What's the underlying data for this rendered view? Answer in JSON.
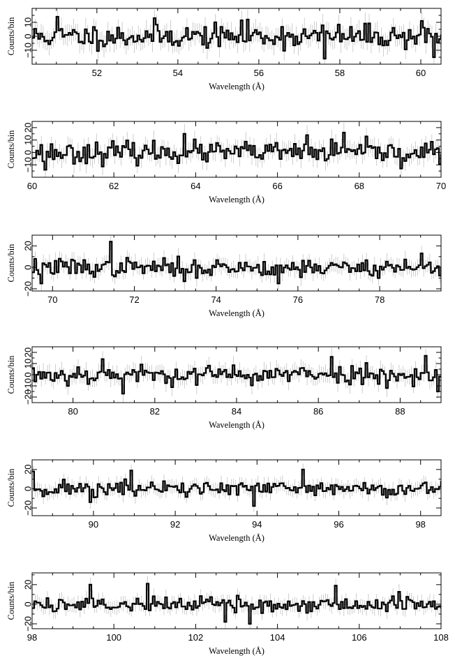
{
  "chart_data": [
    {
      "type": "line",
      "style": "step-histogram",
      "xlabel": "Wavelength (Å)",
      "ylabel": "Counts/bin",
      "xlim": [
        50.4,
        60.5
      ],
      "ylim": [
        -20,
        20
      ],
      "xticks": [
        52,
        54,
        56,
        58,
        60
      ],
      "xtick_labels": [
        "52",
        "54",
        "56",
        "58",
        "60"
      ],
      "yticks": [
        -10,
        0,
        10
      ],
      "ytick_labels": [
        "−10",
        "0",
        "10"
      ],
      "bin_start": 50.4,
      "bin_width": 0.05,
      "seed": 11,
      "spikes": [
        {
          "x": 51.0,
          "y": 14
        },
        {
          "x": 53.4,
          "y": 13
        },
        {
          "x": 55.7,
          "y": 12
        },
        {
          "x": 57.6,
          "y": -16
        },
        {
          "x": 60.0,
          "y": 11
        },
        {
          "x": 60.3,
          "y": -15
        }
      ]
    },
    {
      "type": "line",
      "style": "step-histogram",
      "xlabel": "Wavelength (Å)",
      "ylabel": "Counts/bin",
      "xlim": [
        60,
        70
      ],
      "ylim": [
        -20,
        25
      ],
      "xticks": [
        60,
        62,
        64,
        66,
        68,
        70
      ],
      "xtick_labels": [
        "60",
        "62",
        "64",
        "66",
        "68",
        "70"
      ],
      "yticks": [
        -10,
        0,
        10,
        20
      ],
      "ytick_labels": [
        "−10",
        "0",
        "10",
        "20"
      ],
      "bin_start": 60.0,
      "bin_width": 0.05,
      "seed": 23,
      "spikes": [
        {
          "x": 60.3,
          "y": -14
        },
        {
          "x": 63.7,
          "y": 15
        },
        {
          "x": 66.7,
          "y": 14
        },
        {
          "x": 67.6,
          "y": 16
        },
        {
          "x": 69.0,
          "y": -13
        }
      ]
    },
    {
      "type": "line",
      "style": "step-histogram",
      "xlabel": "Wavelength (Å)",
      "ylabel": "Counts/bin",
      "xlim": [
        69.5,
        79.5
      ],
      "ylim": [
        -22,
        30
      ],
      "xticks": [
        70,
        72,
        74,
        76,
        78
      ],
      "xtick_labels": [
        "70",
        "72",
        "74",
        "76",
        "78"
      ],
      "yticks": [
        -20,
        0,
        20
      ],
      "ytick_labels": [
        "−20",
        "0",
        "20"
      ],
      "bin_start": 69.5,
      "bin_width": 0.05,
      "seed": 37,
      "spikes": [
        {
          "x": 69.7,
          "y": -15
        },
        {
          "x": 71.4,
          "y": 24
        },
        {
          "x": 73.2,
          "y": -13
        },
        {
          "x": 75.5,
          "y": -15
        },
        {
          "x": 79.0,
          "y": 13
        }
      ]
    },
    {
      "type": "line",
      "style": "step-histogram",
      "xlabel": "Wavelength (Å)",
      "ylabel": "Counts/bin",
      "xlim": [
        79,
        89
      ],
      "ylim": [
        -25,
        25
      ],
      "xticks": [
        80,
        82,
        84,
        86,
        88
      ],
      "xtick_labels": [
        "80",
        "82",
        "84",
        "86",
        "88"
      ],
      "yticks": [
        -20,
        -10,
        0,
        10,
        20
      ],
      "ytick_labels": [
        "−20",
        "−10",
        "0",
        "10",
        "20"
      ],
      "ytick_glitch": "−20 −10 0 10 20 labels overlap to read “−20100 1020”",
      "bin_start": 79.0,
      "bin_width": 0.05,
      "seed": 53,
      "spikes": [
        {
          "x": 80.7,
          "y": 14
        },
        {
          "x": 81.2,
          "y": -17
        },
        {
          "x": 86.3,
          "y": 16
        },
        {
          "x": 88.6,
          "y": 17
        },
        {
          "x": 88.9,
          "y": -15
        }
      ]
    },
    {
      "type": "line",
      "style": "step-histogram",
      "xlabel": "Wavelength (Å)",
      "ylabel": "Counts/bin",
      "xlim": [
        88.5,
        98.5
      ],
      "ylim": [
        -28,
        30
      ],
      "xticks": [
        90,
        92,
        94,
        96,
        98
      ],
      "xtick_labels": [
        "90",
        "92",
        "94",
        "96",
        "98"
      ],
      "yticks": [
        -20,
        0,
        20
      ],
      "ytick_labels": [
        "−20",
        "0",
        "20"
      ],
      "bin_start": 88.5,
      "bin_width": 0.05,
      "seed": 71,
      "spikes": [
        {
          "x": 88.5,
          "y": 18
        },
        {
          "x": 89.9,
          "y": -14
        },
        {
          "x": 90.9,
          "y": 19
        },
        {
          "x": 93.9,
          "y": -18
        },
        {
          "x": 95.1,
          "y": 20
        }
      ]
    },
    {
      "type": "line",
      "style": "step-histogram",
      "xlabel": "Wavelength (Å)",
      "ylabel": "Counts/bin",
      "xlim": [
        98,
        108
      ],
      "ylim": [
        -25,
        32
      ],
      "xticks": [
        98,
        100,
        102,
        104,
        106,
        108
      ],
      "xtick_labels": [
        "98",
        "100",
        "102",
        "104",
        "106",
        "108"
      ],
      "yticks": [
        -20,
        0,
        20
      ],
      "ytick_labels": [
        "−20",
        "0",
        "20"
      ],
      "bin_start": 98.0,
      "bin_width": 0.05,
      "seed": 89,
      "spikes": [
        {
          "x": 99.4,
          "y": 20
        },
        {
          "x": 100.8,
          "y": 21
        },
        {
          "x": 102.7,
          "y": -18
        },
        {
          "x": 103.3,
          "y": -20
        },
        {
          "x": 105.4,
          "y": 19
        }
      ]
    }
  ]
}
